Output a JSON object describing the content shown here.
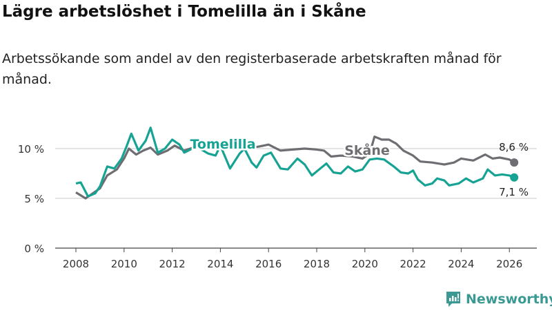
{
  "title": "Lägre arbetslöshet i Tomelilla än i Skåne",
  "subtitle": "Arbetssökande som andel av den registerbaserade arbetskraften månad för månad.",
  "brand": {
    "name": "Newsworthy",
    "color": "#3a9a93"
  },
  "chart_data": {
    "type": "line",
    "title": "Lägre arbetslöshet i Tomelilla än i Skåne",
    "xlabel": "",
    "ylabel": "",
    "xlim": [
      2007.5,
      2026.8
    ],
    "ylim": [
      0,
      12.5
    ],
    "x_ticks": [
      "2008",
      "2010",
      "2012",
      "2014",
      "2016",
      "2018",
      "2020",
      "2022",
      "2024",
      "2026"
    ],
    "y_ticks": [
      {
        "v": 0,
        "label": "0 %"
      },
      {
        "v": 5,
        "label": "5 %"
      },
      {
        "v": 10,
        "label": "10 %"
      }
    ],
    "grid": true,
    "series": [
      {
        "name": "Skåne",
        "color": "#6e6d72",
        "end_label": "8,6 %",
        "x": [
          2008,
          2008.4,
          2008.7,
          2009,
          2009.3,
          2009.7,
          2010,
          2010.2,
          2010.5,
          2010.8,
          2011.1,
          2011.4,
          2011.8,
          2012.1,
          2012.5,
          2013,
          2014,
          2015,
          2015.6,
          2016,
          2016.5,
          2017,
          2017.5,
          2018,
          2018.3,
          2018.6,
          2019,
          2019.5,
          2019.9,
          2020.2,
          2020.4,
          2020.7,
          2021,
          2021.3,
          2021.6,
          2022,
          2022.3,
          2022.8,
          2023.3,
          2023.7,
          2024,
          2024.5,
          2025,
          2025.3,
          2025.6,
          2026,
          2026.2
        ],
        "y": [
          5.6,
          5.0,
          5.5,
          6.0,
          7.3,
          7.9,
          9.0,
          10.0,
          9.4,
          9.8,
          10.1,
          9.4,
          9.8,
          10.3,
          9.8,
          10.2,
          10.1,
          10.0,
          10.2,
          10.4,
          9.8,
          9.9,
          10.0,
          9.9,
          9.8,
          9.2,
          9.3,
          9.2,
          9.0,
          9.5,
          11.2,
          10.9,
          10.9,
          10.5,
          9.8,
          9.3,
          8.7,
          8.6,
          8.4,
          8.6,
          9.0,
          8.8,
          9.4,
          9.0,
          9.1,
          8.9,
          8.6
        ]
      },
      {
        "name": "Tomelilla",
        "color": "#16a394",
        "end_label": "7,1 %",
        "x": [
          2008,
          2008.2,
          2008.5,
          2008.8,
          2009,
          2009.3,
          2009.6,
          2009.9,
          2010.1,
          2010.3,
          2010.6,
          2010.9,
          2011.1,
          2011.4,
          2011.7,
          2012,
          2012.3,
          2012.5,
          2013,
          2013.5,
          2013.8,
          2014,
          2014.4,
          2014.8,
          2015,
          2015.3,
          2015.5,
          2015.8,
          2016.1,
          2016.5,
          2016.8,
          2017.2,
          2017.5,
          2017.8,
          2018.1,
          2018.4,
          2018.7,
          2019,
          2019.3,
          2019.6,
          2019.9,
          2020.2,
          2020.5,
          2020.8,
          2021.2,
          2021.5,
          2021.8,
          2022,
          2022.2,
          2022.5,
          2022.8,
          2023,
          2023.3,
          2023.5,
          2023.9,
          2024.2,
          2024.5,
          2024.9,
          2025.1,
          2025.4,
          2025.7,
          2026,
          2026.2
        ],
        "y": [
          6.5,
          6.6,
          5.2,
          5.5,
          6.2,
          8.2,
          8.0,
          9.0,
          10.2,
          11.5,
          9.8,
          10.8,
          12.1,
          9.6,
          10.0,
          10.9,
          10.4,
          9.6,
          10.2,
          9.5,
          9.3,
          10.3,
          8.0,
          9.5,
          10.0,
          8.6,
          8.1,
          9.3,
          9.6,
          8.0,
          7.9,
          9.0,
          8.4,
          7.3,
          7.9,
          8.5,
          7.6,
          7.5,
          8.2,
          7.7,
          7.9,
          8.9,
          9.0,
          8.9,
          8.2,
          7.6,
          7.5,
          7.8,
          6.9,
          6.3,
          6.5,
          7.0,
          6.8,
          6.3,
          6.5,
          7.0,
          6.6,
          7.0,
          7.9,
          7.3,
          7.4,
          7.3,
          7.1
        ]
      }
    ]
  }
}
